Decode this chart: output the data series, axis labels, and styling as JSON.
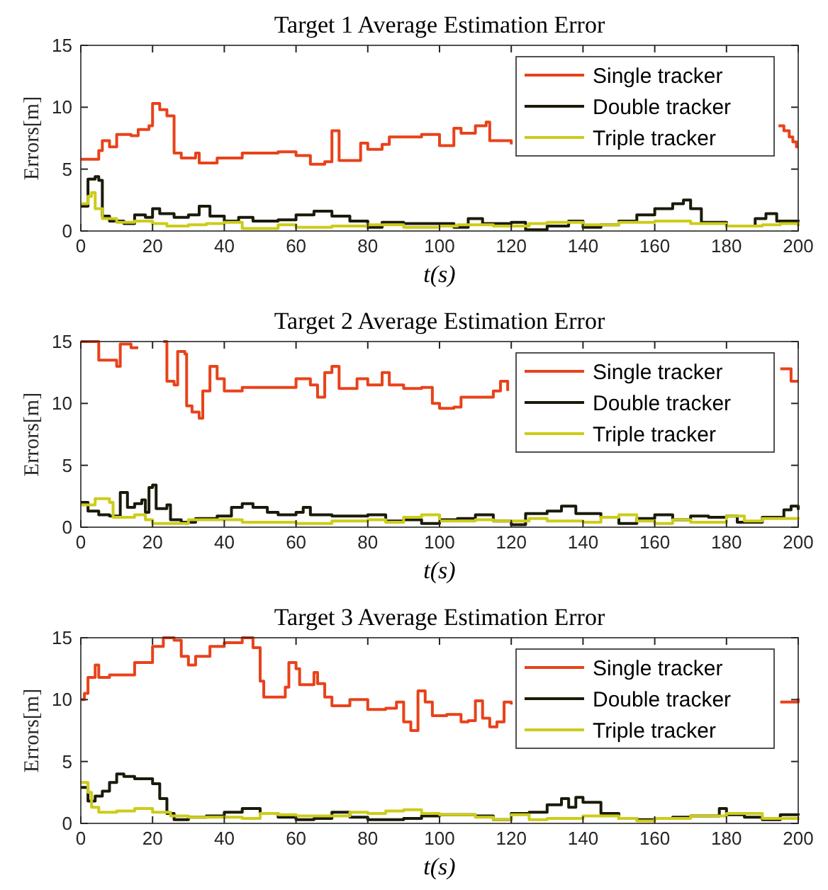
{
  "chart_data": [
    {
      "type": "step",
      "title": "Target 1 Average Estimation Error",
      "xlabel": "t(s)",
      "ylabel": "Errors[m]",
      "xlim": [
        0,
        200
      ],
      "xticks": [
        0,
        20,
        40,
        60,
        80,
        100,
        120,
        140,
        160,
        180,
        200
      ],
      "ylim": [
        0,
        15
      ],
      "yticks": [
        0,
        5,
        10,
        15
      ],
      "legend": "top right",
      "grid": false,
      "series": [
        {
          "name": "Single tracker",
          "color": "#e8421a",
          "x": [
            0,
            3,
            5,
            6,
            8,
            10,
            14,
            16,
            19,
            20,
            22,
            24,
            26,
            28,
            32,
            33,
            38,
            45,
            55,
            60,
            64,
            68,
            70,
            72,
            78,
            80,
            84,
            86,
            95,
            100,
            104,
            106,
            110,
            113,
            114,
            120,
            121,
            194.5,
            196,
            197.5,
            198.5,
            199.5,
            200
          ],
          "values": [
            5.8,
            5.8,
            6.5,
            7.3,
            6.8,
            7.8,
            7.7,
            8.2,
            8.5,
            10.3,
            9.8,
            9.3,
            6.3,
            5.9,
            6.3,
            5.5,
            5.9,
            6.3,
            6.4,
            6.1,
            5.4,
            5.6,
            8.1,
            5.7,
            7.1,
            6.6,
            7.0,
            7.6,
            7.8,
            6.9,
            8.3,
            7.9,
            8.5,
            8.8,
            7.3,
            7.0,
            null,
            8.5,
            8.1,
            7.6,
            7.2,
            6.8,
            6.8
          ]
        },
        {
          "name": "Double tracker",
          "color": "#1a1a0a",
          "x": [
            0,
            2,
            4,
            5,
            6,
            8,
            12,
            15,
            18,
            20,
            22,
            26,
            30,
            33,
            36,
            40,
            44,
            48,
            55,
            60,
            65,
            70,
            75,
            80,
            84,
            90,
            100,
            104,
            108,
            112,
            120,
            124,
            130,
            136,
            140,
            145,
            150,
            155,
            160,
            165,
            168,
            170,
            173,
            180,
            188,
            191,
            194,
            200
          ],
          "values": [
            2.0,
            4.2,
            4.4,
            4.1,
            1.2,
            0.8,
            0.6,
            1.3,
            1.1,
            1.8,
            1.4,
            1.1,
            1.3,
            2.0,
            1.2,
            0.8,
            1.1,
            0.8,
            0.9,
            1.3,
            1.6,
            1.2,
            0.8,
            0.3,
            0.7,
            0.6,
            0.6,
            0.3,
            1.0,
            0.6,
            0.7,
            0.1,
            0.4,
            0.8,
            0.3,
            0.5,
            0.8,
            1.3,
            1.8,
            2.2,
            2.5,
            1.8,
            0.7,
            0.4,
            1.0,
            1.4,
            0.8,
            0.9
          ]
        },
        {
          "name": "Triple tracker",
          "color": "#cccc1a",
          "x": [
            0,
            2,
            3,
            4,
            6,
            10,
            15,
            20,
            24,
            30,
            35,
            40,
            45,
            55,
            60,
            70,
            80,
            90,
            100,
            105,
            115,
            125,
            130,
            140,
            150,
            160,
            170,
            180,
            190,
            195,
            200
          ],
          "values": [
            2.2,
            2.8,
            3.1,
            1.8,
            1.0,
            0.7,
            0.8,
            0.6,
            0.4,
            0.5,
            0.6,
            0.7,
            0.2,
            0.5,
            0.3,
            0.4,
            0.5,
            0.3,
            0.4,
            0.5,
            0.4,
            0.6,
            0.7,
            0.5,
            0.7,
            0.8,
            0.6,
            0.4,
            0.5,
            0.6,
            0.4
          ]
        }
      ]
    },
    {
      "type": "step",
      "title": "Target 2 Average Estimation Error",
      "xlabel": "t(s)",
      "ylabel": "Errors[m]",
      "xlim": [
        0,
        200
      ],
      "xticks": [
        0,
        20,
        40,
        60,
        80,
        100,
        120,
        140,
        160,
        180,
        200
      ],
      "ylim": [
        0,
        15
      ],
      "yticks": [
        0,
        5,
        10,
        15
      ],
      "legend": "top right",
      "grid": false,
      "series": [
        {
          "name": "Single tracker",
          "color": "#e8421a",
          "x": [
            0,
            5,
            10,
            11,
            14,
            16,
            16.5,
            23,
            24,
            26,
            27,
            29,
            29.5,
            31,
            33,
            34,
            36,
            38,
            40,
            45,
            55,
            60,
            64,
            66,
            68,
            70,
            72,
            77,
            80,
            84,
            86,
            90,
            95,
            98,
            100,
            104,
            106,
            115,
            117,
            119,
            120.5,
            195,
            198,
            200
          ],
          "values": [
            15,
            13.5,
            13,
            14.8,
            14.5,
            14.5,
            null,
            15,
            11.8,
            11.5,
            14.2,
            14,
            9.8,
            9.3,
            8.8,
            11,
            13,
            12,
            11,
            11.3,
            11.3,
            12,
            11.5,
            10.5,
            12.5,
            13,
            11.2,
            12,
            11.5,
            12.5,
            11.5,
            11.2,
            11.3,
            10,
            9.6,
            9.7,
            10.5,
            11,
            11.8,
            11,
            null,
            12.8,
            11.8,
            11.8
          ]
        },
        {
          "name": "Double tracker",
          "color": "#1a1a0a",
          "x": [
            0,
            2,
            5,
            8,
            11,
            13,
            15,
            17,
            18,
            19,
            20,
            21,
            24,
            25,
            28,
            32,
            38,
            42,
            45,
            48,
            52,
            55,
            60,
            62,
            64,
            70,
            80,
            85,
            90,
            95,
            100,
            105,
            110,
            115,
            120,
            124,
            130,
            134,
            138,
            145,
            150,
            155,
            160,
            165,
            170,
            175,
            180,
            183,
            190,
            196,
            198,
            200
          ],
          "values": [
            2.0,
            1.3,
            1.0,
            0.9,
            2.8,
            1.6,
            1.9,
            2.2,
            1.2,
            3.2,
            3.4,
            1.5,
            1.8,
            0.6,
            0.4,
            0.7,
            0.9,
            1.6,
            1.9,
            1.6,
            1.2,
            1.0,
            1.2,
            1.6,
            1.0,
            0.9,
            1.0,
            0.5,
            0.6,
            0.3,
            0.6,
            0.7,
            1.0,
            0.5,
            0.2,
            1.1,
            1.3,
            1.7,
            1.1,
            0.8,
            0.3,
            0.7,
            1.0,
            0.6,
            0.9,
            0.8,
            0.9,
            0.4,
            0.8,
            1.4,
            1.7,
            1.4
          ]
        },
        {
          "name": "Triple tracker",
          "color": "#cccc1a",
          "x": [
            0,
            4,
            8,
            9,
            15,
            18,
            20,
            25,
            30,
            40,
            45,
            55,
            60,
            70,
            80,
            85,
            90,
            95,
            100,
            110,
            115,
            125,
            130,
            140,
            145,
            150,
            155,
            160,
            165,
            170,
            180,
            185,
            190,
            200
          ],
          "values": [
            1.8,
            2.3,
            2.0,
            0.8,
            1.0,
            0.6,
            0.3,
            0.3,
            0.6,
            0.6,
            0.4,
            0.4,
            0.3,
            0.5,
            0.6,
            0.4,
            0.8,
            1.0,
            0.5,
            0.6,
            0.5,
            0.7,
            0.5,
            0.4,
            0.8,
            1.0,
            0.5,
            0.3,
            0.6,
            0.4,
            0.9,
            0.5,
            0.7,
            0.8
          ]
        }
      ]
    },
    {
      "type": "step",
      "title": "Target 3 Average Estimation Error",
      "xlabel": "t(s)",
      "ylabel": "Errors[m]",
      "xlim": [
        0,
        200
      ],
      "xticks": [
        0,
        20,
        40,
        60,
        80,
        100,
        120,
        140,
        160,
        180,
        200
      ],
      "ylim": [
        0,
        15
      ],
      "yticks": [
        0,
        5,
        10,
        15
      ],
      "legend": "top right",
      "grid": false,
      "series": [
        {
          "name": "Single tracker",
          "color": "#e8421a",
          "x": [
            0,
            1,
            2,
            4,
            5,
            8,
            12,
            15,
            20,
            23,
            26,
            28,
            30,
            32,
            36,
            40,
            45,
            48,
            50,
            51,
            55,
            57,
            58,
            60,
            61,
            65,
            66,
            68,
            70,
            75,
            80,
            85,
            88,
            90,
            92,
            94,
            96,
            98,
            102,
            106,
            108,
            110,
            112,
            114,
            116,
            118,
            120,
            120.5,
            195,
            200
          ],
          "values": [
            10,
            10.5,
            11.8,
            12.8,
            11.8,
            12.0,
            12.0,
            13.0,
            14.3,
            15,
            14.8,
            13.5,
            12.8,
            13.5,
            14.3,
            14.6,
            15,
            14.2,
            11.5,
            10.2,
            10.2,
            11.0,
            13.0,
            12.5,
            11.2,
            12.2,
            11.3,
            10.2,
            9.5,
            10.0,
            9.2,
            9.3,
            9.8,
            8.2,
            7.5,
            10.7,
            9.8,
            8.7,
            8.8,
            8.2,
            8.3,
            9.9,
            8.5,
            7.8,
            8.2,
            9.8,
            9.6,
            null,
            9.8,
            10.1
          ]
        },
        {
          "name": "Double tracker",
          "color": "#1a1a0a",
          "x": [
            0,
            2,
            4,
            6,
            8,
            10,
            12,
            15,
            18,
            20,
            22,
            24,
            26,
            30,
            35,
            40,
            45,
            50,
            55,
            60,
            65,
            70,
            75,
            80,
            90,
            95,
            100,
            110,
            115,
            120,
            125,
            130,
            134,
            136,
            138,
            140,
            145,
            150,
            155,
            160,
            165,
            170,
            178,
            180,
            185,
            190,
            195,
            200
          ],
          "values": [
            2.9,
            1.8,
            2.2,
            2.6,
            3.3,
            4.0,
            3.8,
            3.6,
            3.6,
            3.2,
            2.0,
            0.8,
            0.3,
            0.5,
            0.6,
            0.9,
            1.2,
            0.8,
            0.5,
            0.3,
            0.4,
            0.9,
            0.5,
            0.3,
            0.4,
            0.6,
            0.7,
            0.6,
            0.3,
            0.8,
            0.9,
            1.5,
            2.0,
            1.3,
            2.1,
            1.7,
            0.8,
            0.4,
            0.3,
            0.4,
            0.5,
            0.6,
            1.2,
            0.7,
            0.5,
            0.3,
            0.7,
            0.8
          ]
        },
        {
          "name": "Triple tracker",
          "color": "#cccc1a",
          "x": [
            0,
            2,
            3,
            5,
            10,
            15,
            20,
            25,
            30,
            40,
            45,
            50,
            55,
            60,
            70,
            75,
            80,
            85,
            90,
            95,
            100,
            110,
            115,
            120,
            125,
            130,
            140,
            150,
            155,
            160,
            170,
            180,
            190,
            200
          ],
          "values": [
            3.3,
            2.5,
            1.3,
            0.9,
            1.0,
            1.2,
            0.9,
            0.6,
            0.5,
            0.5,
            0.4,
            0.8,
            0.7,
            0.6,
            0.6,
            0.9,
            0.8,
            1.0,
            1.1,
            0.8,
            0.7,
            0.5,
            0.3,
            0.7,
            0.3,
            0.4,
            0.6,
            0.4,
            0.2,
            0.4,
            0.6,
            0.8,
            0.4,
            0.3
          ]
        }
      ]
    }
  ]
}
